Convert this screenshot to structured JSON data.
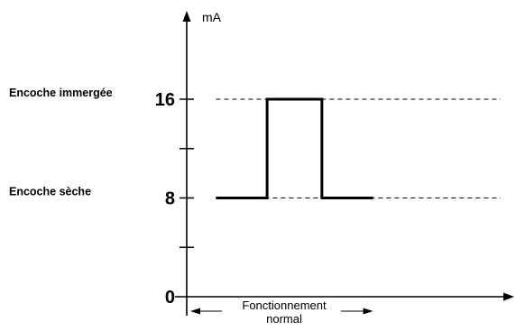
{
  "chart_data": {
    "type": "line",
    "title": "",
    "xlabel": "",
    "ylabel": "mA",
    "ylim": [
      0,
      20
    ],
    "y_ticks": [
      4,
      8,
      12,
      16
    ],
    "y_tick_labels": [
      {
        "value": 0,
        "text": "0"
      },
      {
        "value": 8,
        "text": "8"
      },
      {
        "value": 16,
        "text": "16"
      }
    ],
    "level_labels": [
      {
        "value": 16,
        "text": "Encoche immergée"
      },
      {
        "value": 8,
        "text": "Encoche sèche"
      }
    ],
    "reference_lines": [
      {
        "value": 16,
        "style": "dashed"
      },
      {
        "value": 8,
        "style": "dashed"
      }
    ],
    "x_range": [
      0,
      10
    ],
    "series": [
      {
        "points": [
          [
            0.8,
            8
          ],
          [
            2.2,
            8
          ],
          [
            2.2,
            16
          ],
          [
            3.7,
            16
          ],
          [
            3.7,
            8
          ],
          [
            5.1,
            8
          ]
        ]
      }
    ],
    "span_annotation": {
      "from": 0,
      "to": 5.1,
      "line1": "Fonctionnement",
      "line2": "normal"
    }
  }
}
